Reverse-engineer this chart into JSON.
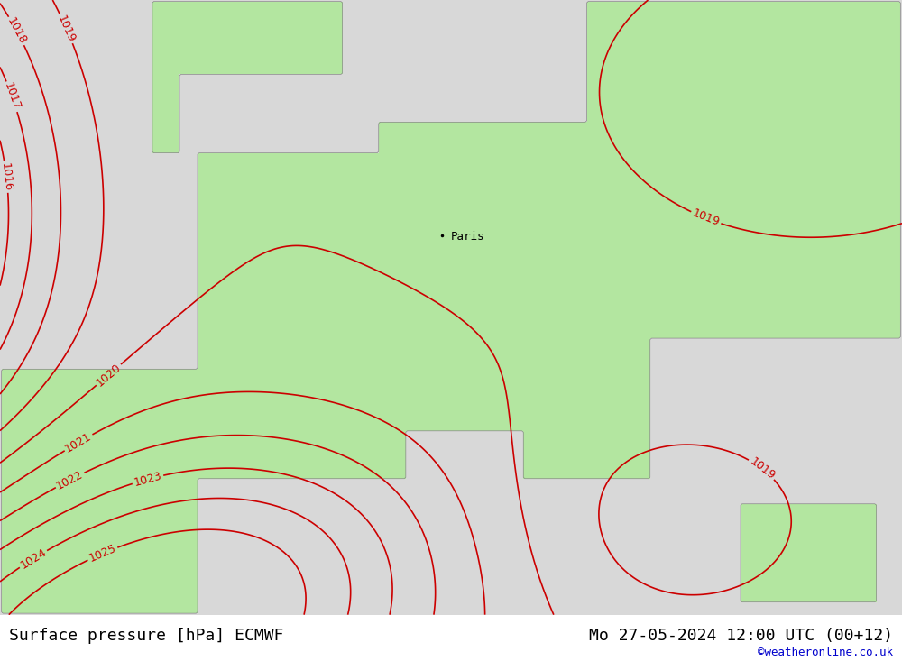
{
  "title_left": "Surface pressure [hPa] ECMWF",
  "title_right": "Mo 27-05-2024 12:00 UTC (00+12)",
  "watermark": "©weatheronline.co.uk",
  "land_color": "#b3e6a0",
  "sea_color": "#d8d8d8",
  "isobar_color_red": "#cc0000",
  "isobar_color_blue": "#0000cc",
  "isobar_color_black": "#000000",
  "contour_linewidth": 1.2,
  "label_fontsize": 9,
  "title_fontsize": 13,
  "watermark_fontsize": 9,
  "background_color": "#ffffff",
  "paris_label": "Paris",
  "fig_width": 10.0,
  "fig_height": 7.33
}
